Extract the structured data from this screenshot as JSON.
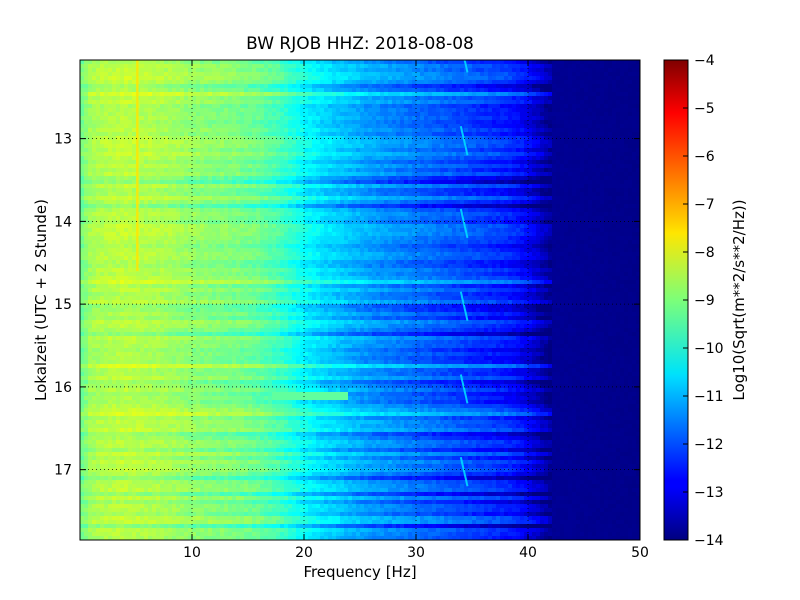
{
  "chart_data": {
    "type": "heatmap",
    "title": "BW RJOB HHZ: 2018-08-08",
    "xlabel": "Frequency [Hz]",
    "ylabel": "Lokalzeit (UTC + 2 Stunde)",
    "xlim": [
      0,
      50
    ],
    "ylim": [
      17.85,
      12.05
    ],
    "xticks": [
      10,
      20,
      30,
      40,
      50
    ],
    "yticks": [
      13,
      14,
      15,
      16,
      17
    ],
    "grid": true,
    "colorbar": {
      "label": "Log10(Sqrt(m**2/s**2/Hz))",
      "range": [
        -14,
        -4
      ],
      "ticks": [
        -4,
        -5,
        -6,
        -7,
        -8,
        -9,
        -10,
        -11,
        -12,
        -13,
        -14
      ],
      "colormap": "jet"
    },
    "spectral_profile": {
      "frequency_hz": [
        0,
        1,
        2,
        4,
        6,
        8,
        10,
        12,
        14,
        16,
        18,
        20,
        22,
        24,
        26,
        28,
        30,
        32,
        34,
        36,
        38,
        39,
        40,
        41,
        42,
        50
      ],
      "log10_amplitude": [
        -9.2,
        -8.6,
        -8.5,
        -8.4,
        -8.5,
        -8.6,
        -8.8,
        -8.9,
        -9.0,
        -9.2,
        -9.6,
        -10.2,
        -10.6,
        -10.9,
        -11.2,
        -11.4,
        -11.6,
        -11.8,
        -12.0,
        -12.2,
        -12.4,
        -12.6,
        -12.9,
        -13.3,
        -13.8,
        -13.9
      ]
    },
    "features": [
      {
        "kind": "narrowband_line",
        "frequency_hz": 5.1,
        "time_range": [
          12.05,
          14.6
        ],
        "log10_amplitude": -7.5
      },
      {
        "kind": "wandering_line",
        "frequency_hz": [
          34.0,
          34.6
        ],
        "log10_amplitude": -10.6,
        "repeats_hourly": true
      },
      {
        "kind": "bright_band",
        "time": 16.1,
        "frequency_range": [
          17,
          24
        ],
        "log10_amplitude": -9.3
      }
    ]
  }
}
